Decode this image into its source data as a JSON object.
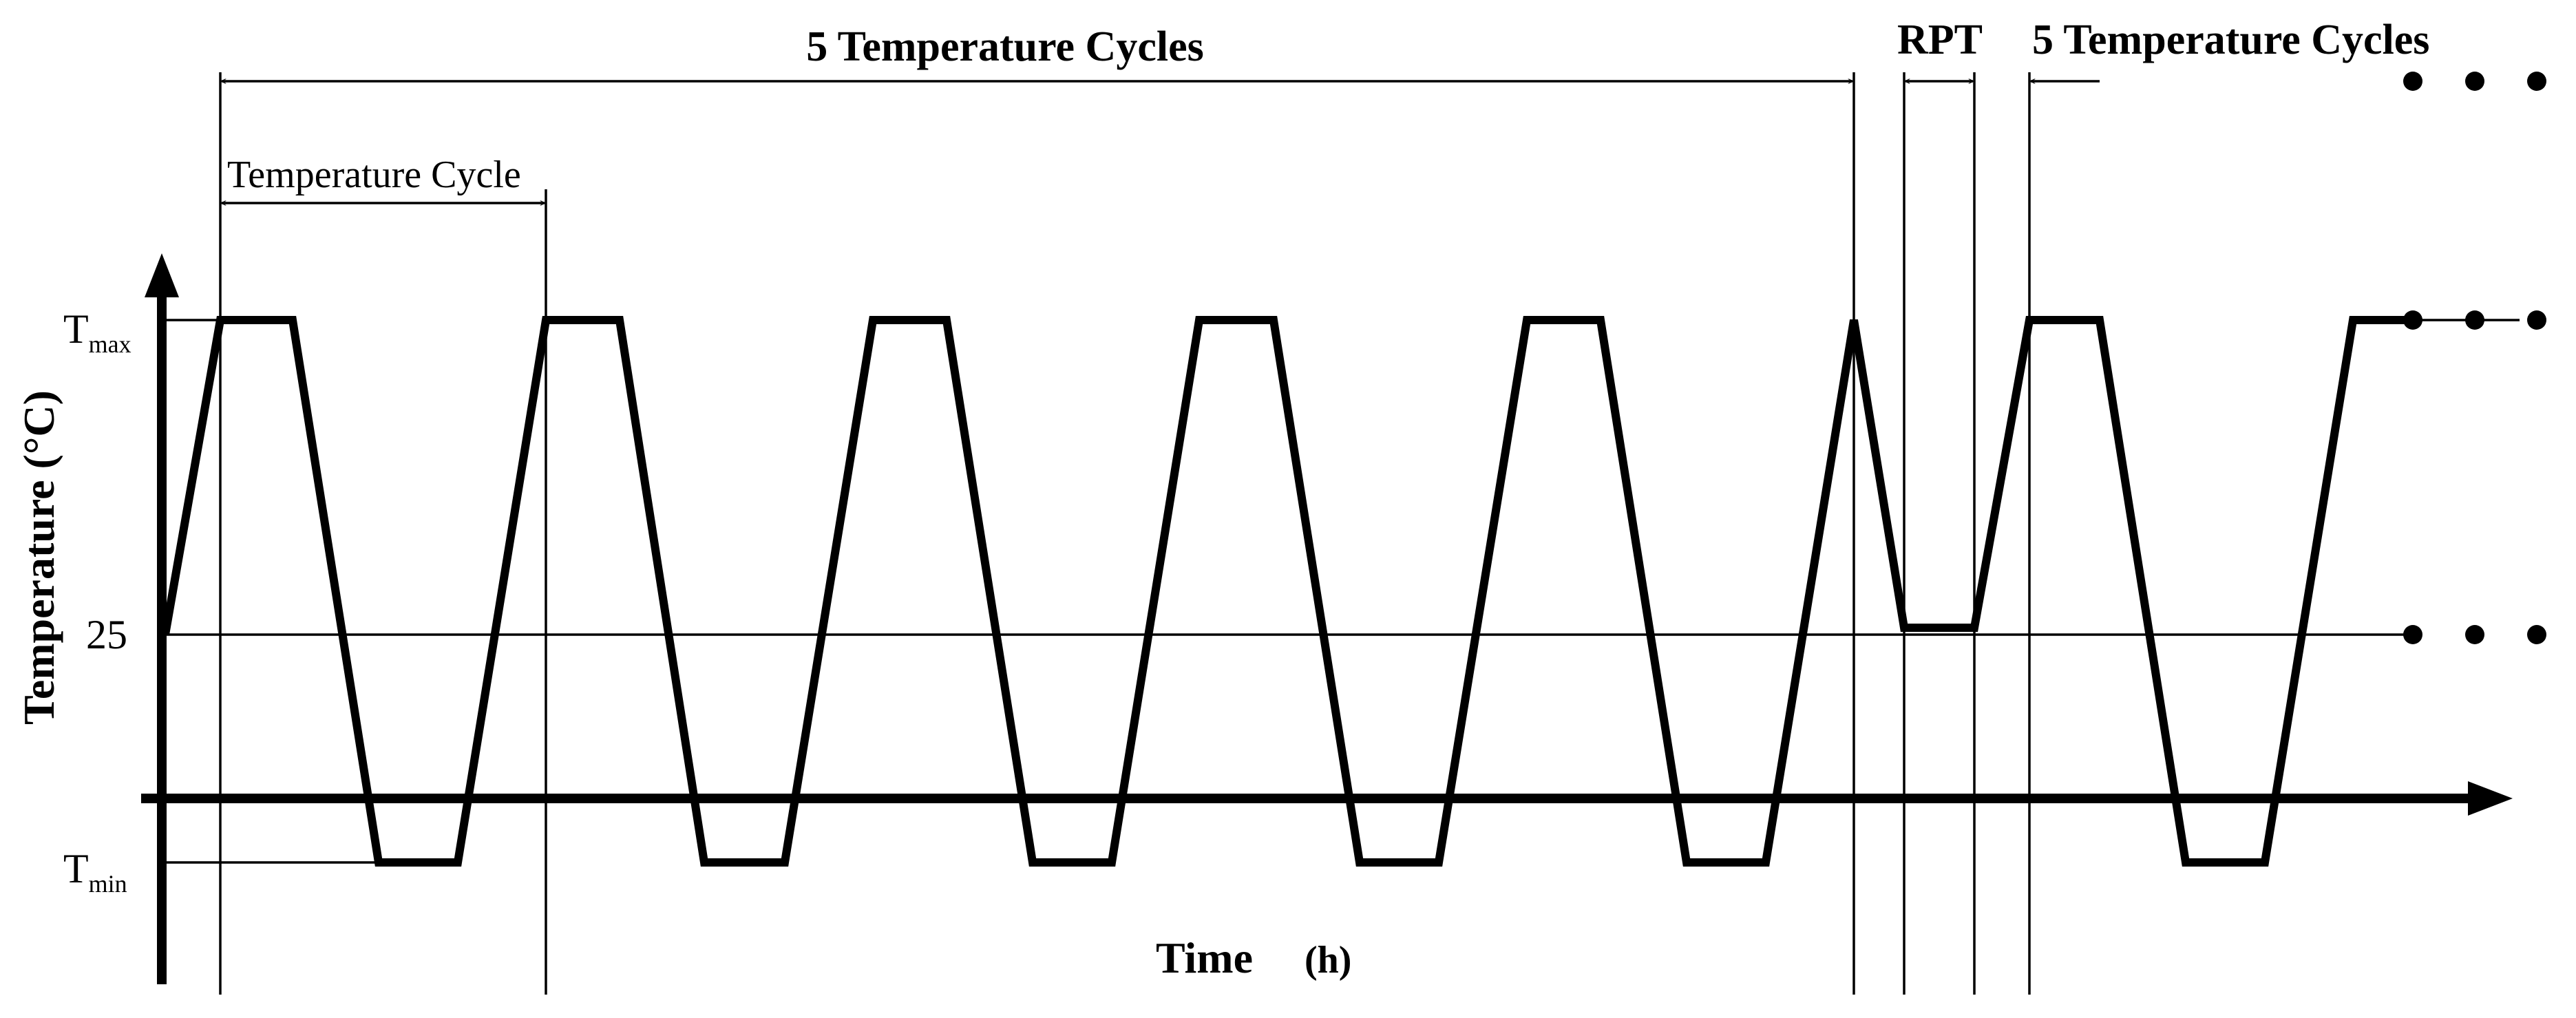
{
  "labels": {
    "span_first_cycles": "5 Temperature Cycles",
    "span_rpt": "RPT",
    "span_second_cycles": "5 Temperature Cycles",
    "span_single_cycle": "Temperature Cycle",
    "y_axis": "Temperature (°C)",
    "x_axis": "Time",
    "x_axis_unit": "(h)",
    "tick_max_main": "T",
    "tick_max_sub": "max",
    "tick_25": "25",
    "tick_min_main": "T",
    "tick_min_sub": "min"
  },
  "continuation": "• • •"
}
